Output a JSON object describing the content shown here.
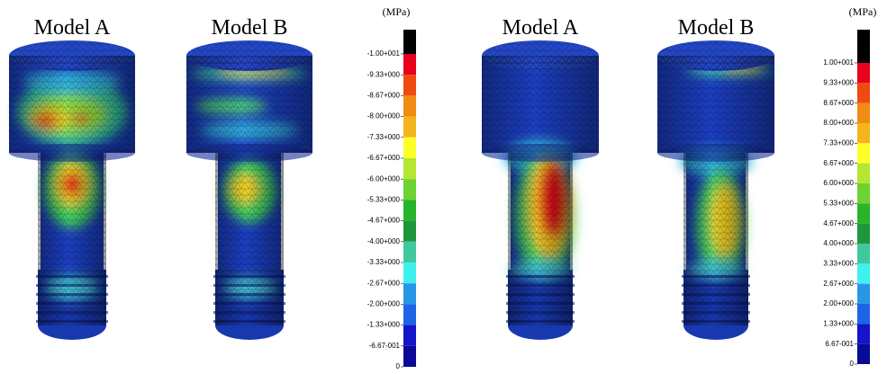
{
  "panels": [
    {
      "labels": [
        "Model A",
        "Model B"
      ]
    },
    {
      "labels": [
        "Model A",
        "Model B"
      ]
    }
  ],
  "colorbars": [
    {
      "unit": "(MPa)",
      "labels": [
        "-1.00+001",
        "-9.33+000",
        "-8.67+000",
        "-8.00+000",
        "-7.33+000",
        "-6.67+000",
        "-6.00+000",
        "-5.33+000",
        "-4.67+000",
        "-4.00+000",
        "-3.33+000",
        "-2.67+000",
        "-2.00+000",
        "-1.33+000",
        "-6.67-001",
        "0"
      ],
      "colors": [
        "#000000",
        "#e8001c",
        "#f04a10",
        "#f08c14",
        "#f5b41e",
        "#ffff28",
        "#b4e632",
        "#6ed232",
        "#28b428",
        "#20963c",
        "#40c8a0",
        "#40f0f0",
        "#2896e6",
        "#1e64e6",
        "#1414c8",
        "#0a0a96"
      ]
    },
    {
      "unit": "(MPa)",
      "labels": [
        "1.00+001",
        "9.33+000",
        "8.67+000",
        "8.00+000",
        "7.33+000",
        "6.67+000",
        "6.00+000",
        "5.33+000",
        "4.67+000",
        "4.00+000",
        "3.33+000",
        "2.67+000",
        "2.00+000",
        "1.33+000",
        "6.67-001",
        "0"
      ],
      "colors": [
        "#000000",
        "#e8001c",
        "#f04a10",
        "#f08c14",
        "#f5b41e",
        "#ffff28",
        "#b4e632",
        "#6ed232",
        "#28b428",
        "#20963c",
        "#40c8a0",
        "#40f0f0",
        "#2896e6",
        "#1e64e6",
        "#1414c8",
        "#0a0a96"
      ]
    }
  ]
}
